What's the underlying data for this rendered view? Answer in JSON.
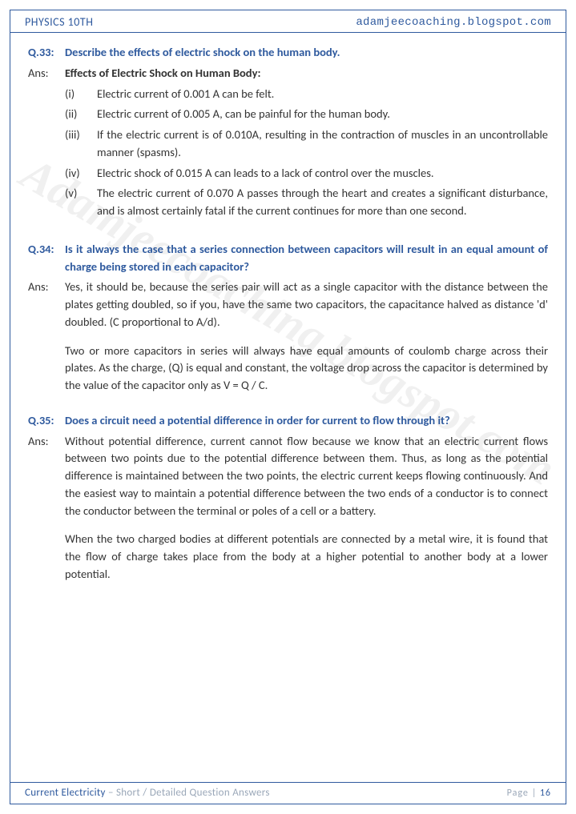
{
  "colors": {
    "accent": "#2f5a9e",
    "body_text": "#333333",
    "muted": "#9aa7b8",
    "watermark": "rgba(120,120,120,0.11)",
    "background": "#ffffff"
  },
  "typography": {
    "body_family": "Calibri",
    "body_size_pt": 11,
    "header_size_pt": 11,
    "watermark_size_pt": 44
  },
  "header": {
    "left": "PHYSICS 10TH",
    "right": "adamjeecoaching.blogspot.com"
  },
  "watermark": "Adamjeecoaching.blogspot.com",
  "questions": [
    {
      "qnum": "Q.33:",
      "question": "Describe the effects of electric shock on the human body.",
      "ans_label": "Ans:",
      "ans_heading": "Effects of Electric Shock on Human Body:",
      "list": [
        {
          "num": "(i)",
          "text": "Electric current of 0.001 A can be felt."
        },
        {
          "num": "(ii)",
          "text": "Electric current of 0.005 A, can be painful for the human body."
        },
        {
          "num": "(iii)",
          "text": "If the electric current is of 0.010A, resulting in the contraction of muscles in an uncontrollable manner (spasms)."
        },
        {
          "num": "(iv)",
          "text": "Electric shock of 0.015 A can leads to a lack of control over the muscles."
        },
        {
          "num": "(v)",
          "text": "The electric current of 0.070 A passes through the heart and creates a significant disturbance, and is almost certainly fatal if the current continues for more than one second."
        }
      ]
    },
    {
      "qnum": "Q.34:",
      "question": "Is it always the case that a series connection between capacitors will result in an equal amount of charge being stored in each capacitor?",
      "ans_label": "Ans:",
      "paragraphs": [
        "Yes, it should be, because the series pair will act as a single capacitor with the distance between the plates getting doubled, so if you, have the same two capacitors, the capacitance halved as distance 'd' doubled. (C proportional to A/d).",
        "Two or more capacitors in series will always have equal amounts of coulomb charge across their plates. As the charge, (Q) is equal and constant, the voltage drop across the capacitor is determined by the value of the capacitor only as V = Q / C."
      ]
    },
    {
      "qnum": "Q.35:",
      "question": "Does a circuit need a potential difference in order for current to flow through it?",
      "ans_label": "Ans:",
      "paragraphs": [
        "Without potential difference, current cannot flow because we know that an electric current flows between two points due to the potential difference between them. Thus, as long as the potential difference is maintained between the two points, the electric current keeps flowing continuously. And the easiest way to maintain a potential difference between the two ends of a conductor is to connect the conductor between the terminal or poles of a cell or a battery.",
        "When the two charged bodies at different potentials are connected by a metal wire, it is found that the flow of charge takes place from the body at a higher potential to another body at a lower potential."
      ]
    }
  ],
  "footer": {
    "topic": "Current Electricity",
    "separator": " – ",
    "subtitle": "Short / Detailed Question Answers",
    "page_label": "Page |",
    "page_number": "16"
  }
}
